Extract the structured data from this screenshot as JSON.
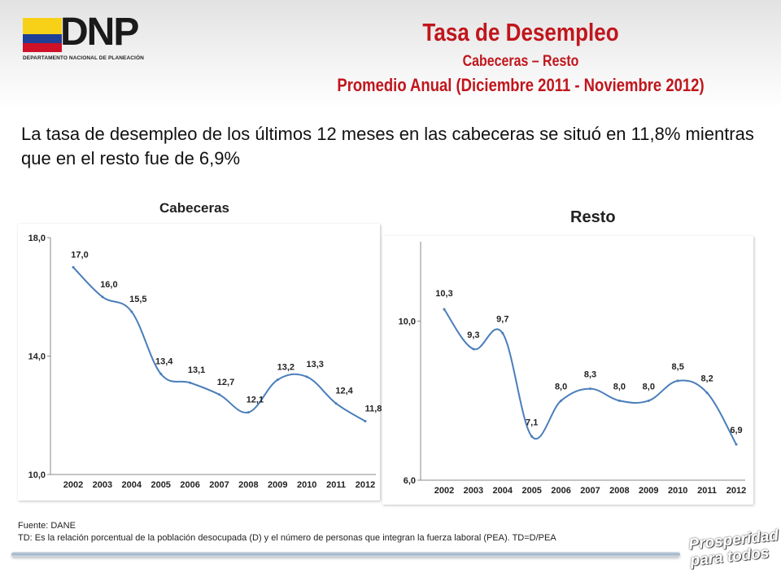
{
  "header": {
    "logo_text": "DNP",
    "logo_subtext": "DEPARTAMENTO NACIONAL DE PLANEACIÓN",
    "title": "Tasa de Desempleo",
    "subtitle": "Cabeceras – Resto",
    "subtitle2": "Promedio Anual (Diciembre  2011 - Noviembre 2012)",
    "flag_colors": [
      "#f7d117",
      "#1f3f96",
      "#ce1126"
    ],
    "title_color": "#c0161c"
  },
  "lead_text": "La tasa de desempleo de los últimos 12 meses en las cabeceras se situó en 11,8% mientras que en el resto fue de 6,9%",
  "chart_data": [
    {
      "type": "line",
      "title": "Cabeceras",
      "x": [
        "2002",
        "2003",
        "2004",
        "2005",
        "2006",
        "2007",
        "2008",
        "2009",
        "2010",
        "2011",
        "2012"
      ],
      "values": [
        17.0,
        16.0,
        15.5,
        13.4,
        13.1,
        12.7,
        12.1,
        13.2,
        13.3,
        12.4,
        11.8
      ],
      "labels": [
        "17,0",
        "16,0",
        "15,5",
        "13,4",
        "13,1",
        "12,7",
        "12,1",
        "13,2",
        "13,3",
        "12,4",
        "11,8"
      ],
      "yticks": [
        "10,0",
        "14,0",
        "18,0"
      ],
      "ylim": [
        10,
        18
      ],
      "line_color": "#4a7ebb",
      "grid": false
    },
    {
      "type": "line",
      "title": "Resto",
      "x": [
        "2002",
        "2003",
        "2004",
        "2005",
        "2006",
        "2007",
        "2008",
        "2009",
        "2010",
        "2011",
        "2012"
      ],
      "values": [
        10.3,
        9.3,
        9.7,
        7.1,
        8.0,
        8.3,
        8.0,
        8.0,
        8.5,
        8.2,
        6.9
      ],
      "labels": [
        "10,3",
        "9,3",
        "9,7",
        "7,1",
        "8,0",
        "8,3",
        "8,0",
        "8,0",
        "8,5",
        "8,2",
        "6,9"
      ],
      "yticks": [
        "6,0",
        "10,0"
      ],
      "ylim": [
        6,
        12
      ],
      "line_color": "#4a7ebb",
      "grid": false
    }
  ],
  "footer": {
    "source": "Fuente: DANE",
    "note": "TD:  Es la relación porcentual de la población desocupada (D) y el número de personas que integran la fuerza laboral (PEA). TD=D/PEA",
    "slogan_line1": "Prosperidad",
    "slogan_line2": "para todos"
  }
}
